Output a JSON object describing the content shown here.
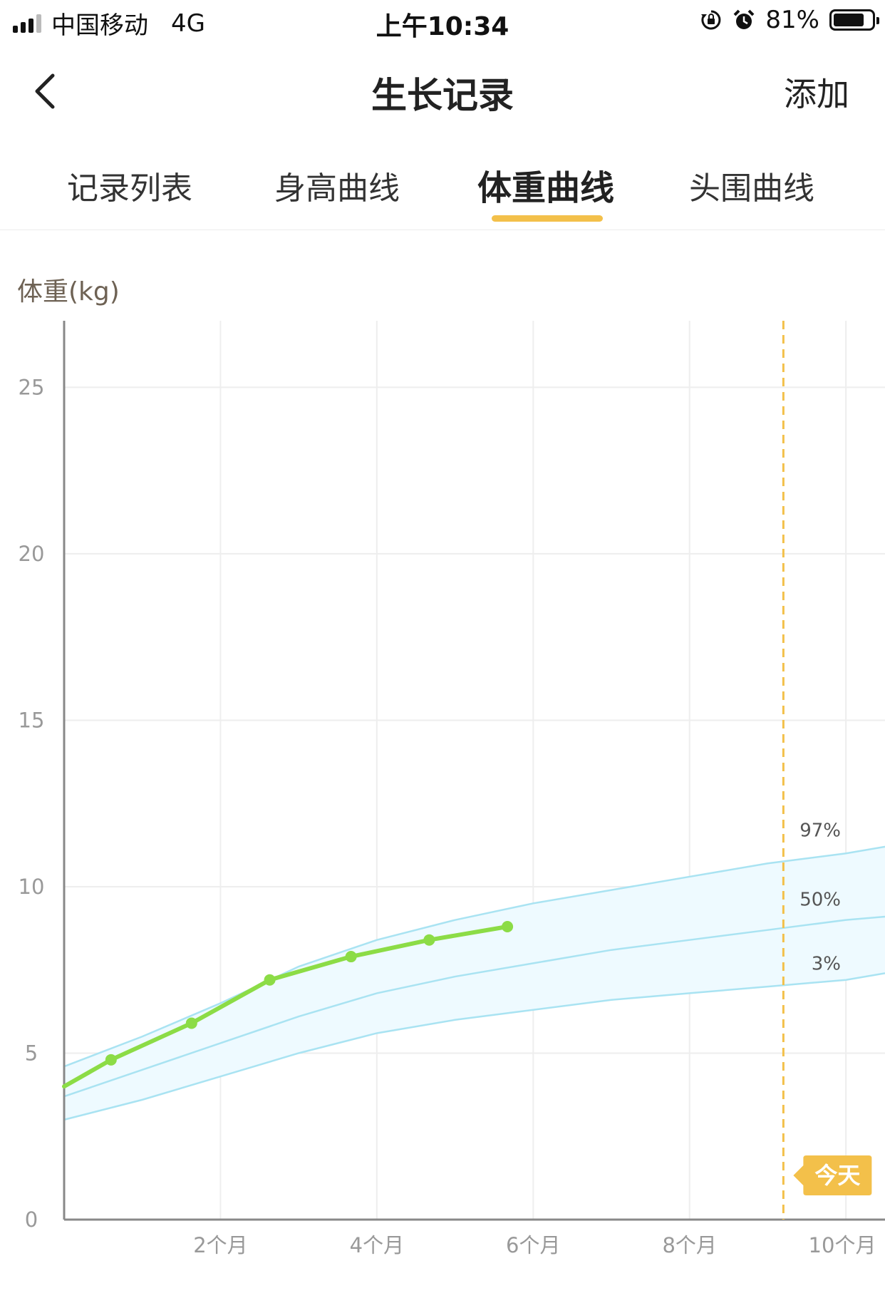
{
  "status_bar": {
    "carrier": "中国移动",
    "network": "4G",
    "time": "上午10:34",
    "battery_percent": "81%",
    "battery_level": 0.81,
    "icons": [
      "signal-icon",
      "rotation-lock-icon",
      "alarm-icon",
      "battery-icon"
    ]
  },
  "nav": {
    "title": "生长记录",
    "add_label": "添加",
    "back_icon": "chevron-left-icon"
  },
  "tabs": [
    {
      "label": "记录列表",
      "active": false
    },
    {
      "label": "身高曲线",
      "active": false
    },
    {
      "label": "体重曲线",
      "active": true
    },
    {
      "label": "头围曲线",
      "active": false
    }
  ],
  "colors": {
    "accent": "#f3c04a",
    "record_line": "#8cdc46",
    "band_fill": "#eefaff",
    "percentile_line": "#a9e3f2",
    "axis": "#888888",
    "grid": "#eeeeee",
    "label": "#999999"
  },
  "chart_data": {
    "type": "line",
    "ylabel": "体重(kg)",
    "xlabel": "",
    "ylim": [
      0,
      27
    ],
    "xlim": [
      0,
      10.5
    ],
    "yticks": [
      0,
      5,
      10,
      15,
      20,
      25
    ],
    "xticks": [
      2,
      4,
      6,
      8,
      10
    ],
    "xtick_labels": [
      "2个月",
      "4个月",
      "6个月",
      "8个月",
      "10个月"
    ],
    "grid": true,
    "today": {
      "x": 9.2,
      "label": "今天"
    },
    "percentile_bands": [
      {
        "name": "97%",
        "x": [
          0,
          1,
          2,
          3,
          4,
          5,
          6,
          7,
          8,
          9,
          10,
          10.5
        ],
        "y": [
          4.6,
          5.5,
          6.5,
          7.6,
          8.4,
          9.0,
          9.5,
          9.9,
          10.3,
          10.7,
          11.0,
          11.2
        ]
      },
      {
        "name": "50%",
        "x": [
          0,
          1,
          2,
          3,
          4,
          5,
          6,
          7,
          8,
          9,
          10,
          10.5
        ],
        "y": [
          3.7,
          4.5,
          5.3,
          6.1,
          6.8,
          7.3,
          7.7,
          8.1,
          8.4,
          8.7,
          9.0,
          9.1
        ]
      },
      {
        "name": "3%",
        "x": [
          0,
          1,
          2,
          3,
          4,
          5,
          6,
          7,
          8,
          9,
          10,
          10.5
        ],
        "y": [
          3.0,
          3.6,
          4.3,
          5.0,
          5.6,
          6.0,
          6.3,
          6.6,
          6.8,
          7.0,
          7.2,
          7.4
        ]
      }
    ],
    "series": [
      {
        "x": [
          0,
          0.6,
          1.63,
          2.63,
          3.67,
          4.67,
          5.67
        ],
        "y": [
          4.0,
          4.8,
          5.9,
          7.2,
          7.9,
          8.4,
          8.8
        ]
      }
    ]
  }
}
